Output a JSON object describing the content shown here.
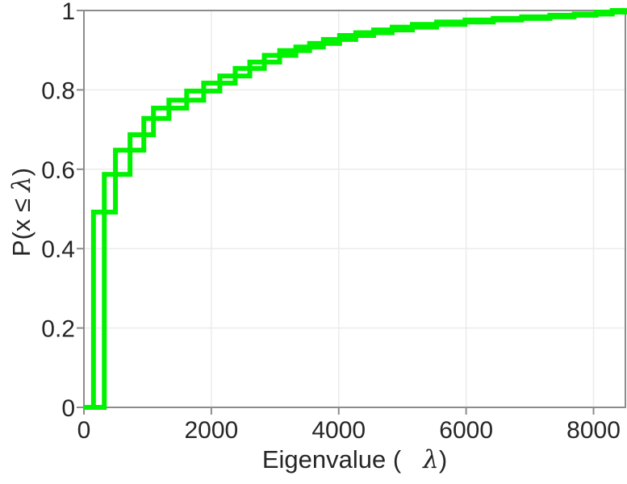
{
  "figure": {
    "background": "#ffffff"
  },
  "chart_data": {
    "type": "ecdf-stairs",
    "title": "",
    "xlabel": {
      "prefix": "Eigenvalue (",
      "lambda": "λ",
      "suffix": ")"
    },
    "ylabel": {
      "prefix": "P(x ≤",
      "lambda": "λ",
      "suffix": ")"
    },
    "xlim": [
      0,
      8500
    ],
    "ylim": [
      0,
      1
    ],
    "x_ticks": [
      0,
      2000,
      4000,
      6000,
      8000
    ],
    "x_tick_labels": [
      "0",
      "2000",
      "4000",
      "6000",
      "8000"
    ],
    "y_ticks": [
      0,
      0.2,
      0.4,
      0.6,
      0.8,
      1
    ],
    "y_tick_labels": [
      "0",
      "0.2",
      "0.4",
      "0.6",
      "0.8",
      "1"
    ],
    "grid": true,
    "legend": null,
    "line_width": 6,
    "colors": {
      "line": "#00f200",
      "axis": "#8c8c8c",
      "grid": "#ebebeb",
      "tick_label": "#262626",
      "background": "#ffffff"
    },
    "step_x": [
      150,
      320,
      495,
      724,
      940,
      1092,
      1334,
      1613,
      1880,
      2134,
      2375,
      2604,
      2832,
      3073,
      3327,
      3543,
      3759,
      4013,
      4267,
      4547,
      4839,
      5156,
      5537,
      5982,
      6426,
      6871,
      7315,
      7696,
      8039,
      8293
    ],
    "cdf": [
      0.492,
      0.587,
      0.648,
      0.687,
      0.728,
      0.754,
      0.774,
      0.797,
      0.817,
      0.835,
      0.854,
      0.87,
      0.887,
      0.899,
      0.908,
      0.917,
      0.927,
      0.937,
      0.944,
      0.951,
      0.958,
      0.965,
      0.971,
      0.976,
      0.98,
      0.984,
      0.988,
      0.991,
      0.996,
      1.0
    ]
  }
}
